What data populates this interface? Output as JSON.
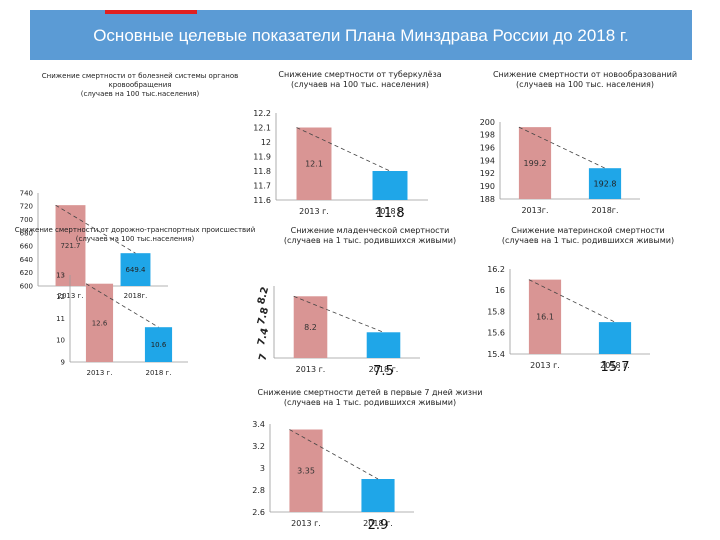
{
  "header": {
    "title": "Основные целевые показатели Плана Минздрава России до 2018 г.",
    "accent_color": "#e02020",
    "background_color": "#5b9bd5"
  },
  "colors": {
    "bar_2013": "#d99594",
    "bar_2018": "#1fa6e8",
    "trend_line": "#444444"
  },
  "chart_data": [
    {
      "id": "cardio",
      "type": "bar",
      "title_lines": [
        "Снижение смертности от болезней системы органов кровообращения",
        "(случаев на 100 тыс.населения)"
      ],
      "categories": [
        "2013 г.",
        "2018г."
      ],
      "values": [
        721.7,
        649.4
      ],
      "value_labels": [
        "721.7",
        "649.4"
      ],
      "yticks": [
        "600",
        "620",
        "640",
        "660",
        "680",
        "700",
        "720",
        "740"
      ],
      "ylim": [
        600,
        740
      ]
    },
    {
      "id": "tuberculosis",
      "type": "bar",
      "title_lines": [
        "Снижение смертности от туберкулёза",
        "(случаев на 100 тыс. населения)"
      ],
      "categories": [
        "2013 г.",
        "2018 г."
      ],
      "values": [
        12.1,
        11.8
      ],
      "value_labels": [
        "12.1",
        "11.8"
      ],
      "yticks": [
        "11.6",
        "11.7",
        "11.8",
        "11.9",
        "12",
        "12.1",
        "12.2"
      ],
      "ylim": [
        11.6,
        12.2
      ]
    },
    {
      "id": "oncology",
      "type": "bar",
      "title_lines": [
        "Снижение смертности от новообразований",
        "(случаев на 100 тыс. населения)"
      ],
      "categories": [
        "2013г.",
        "2018г."
      ],
      "values": [
        199.2,
        192.8
      ],
      "value_labels": [
        "199.2",
        "192.8"
      ],
      "yticks": [
        "188",
        "190",
        "192",
        "194",
        "196",
        "198",
        "200"
      ],
      "ylim": [
        188,
        200
      ]
    },
    {
      "id": "road_accidents",
      "type": "bar",
      "title_lines": [
        "Снижение смертности от дорожно-транспортных происшествий",
        "(случаев на 100 тыс.населения)"
      ],
      "categories": [
        "2013 г.",
        "2018 г."
      ],
      "values": [
        12.6,
        10.6
      ],
      "value_labels": [
        "12.6",
        "10.6"
      ],
      "yticks": [
        "9",
        "10",
        "11",
        "12",
        "13"
      ],
      "ylim": [
        9,
        13
      ]
    },
    {
      "id": "infant",
      "type": "bar",
      "title_lines": [
        "Снижение младенческой смертности",
        "(случаев на 1 тыс. родившихся живыми)"
      ],
      "categories": [
        "2013 г.",
        "2018 г."
      ],
      "values": [
        8.2,
        7.5
      ],
      "value_labels": [
        "8.2",
        "7.5"
      ],
      "yticks": [
        "7",
        "7.4",
        "7.8",
        "8.2"
      ],
      "ylim": [
        7,
        8.4
      ]
    },
    {
      "id": "maternal",
      "type": "bar",
      "title_lines": [
        "Снижение материнской смертности",
        "(случаев на 1 тыс. родившихся живыми)"
      ],
      "categories": [
        "2013 г.",
        "2018 г."
      ],
      "values": [
        16.1,
        15.7
      ],
      "value_labels": [
        "16.1",
        "15.7"
      ],
      "yticks": [
        "15.4",
        "15.6",
        "15.8",
        "16",
        "16.2"
      ],
      "ylim": [
        15.4,
        16.2
      ]
    },
    {
      "id": "children_first_7_days",
      "type": "bar",
      "title_lines": [
        "Снижение смертности детей в первые 7 дней жизни",
        "(случаев на 1 тыс. родившихся живыми)"
      ],
      "categories": [
        "2013 г.",
        "2018 г."
      ],
      "values": [
        3.35,
        2.9
      ],
      "value_labels": [
        "3.35",
        "2.9"
      ],
      "yticks": [
        "2.6",
        "2.8",
        "3",
        "3.2",
        "3.4"
      ],
      "ylim": [
        2.6,
        3.4
      ]
    }
  ]
}
